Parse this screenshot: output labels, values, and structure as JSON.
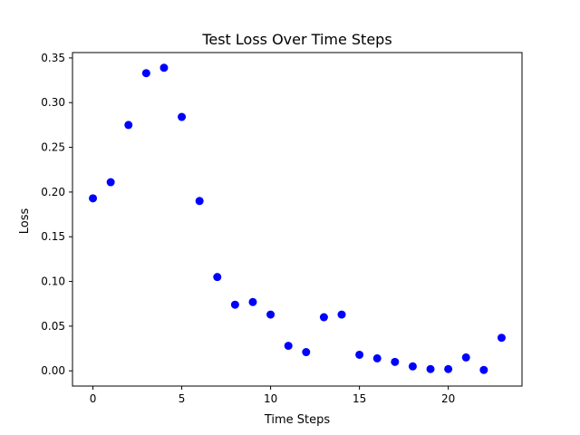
{
  "chart_data": {
    "type": "scatter",
    "title": "Test Loss Over Time Steps",
    "xlabel": "Time Steps",
    "ylabel": "Loss",
    "xlim": [
      -1.15,
      24.15
    ],
    "ylim": [
      -0.017,
      0.356
    ],
    "xticks": [
      0,
      5,
      10,
      15,
      20
    ],
    "xtick_labels": [
      "0",
      "5",
      "10",
      "15",
      "20"
    ],
    "yticks": [
      0.0,
      0.05,
      0.1,
      0.15,
      0.2,
      0.25,
      0.3,
      0.35
    ],
    "ytick_labels": [
      "0.00",
      "0.05",
      "0.10",
      "0.15",
      "0.20",
      "0.25",
      "0.30",
      "0.35"
    ],
    "grid": false,
    "legend": "none",
    "marker_color": "#0000ff",
    "series": [
      {
        "x": [
          0,
          1,
          2,
          3,
          4,
          5,
          6,
          7,
          8,
          9,
          10,
          11,
          12,
          13,
          14,
          15,
          16,
          17,
          18,
          19,
          20,
          21,
          22,
          23
        ],
        "y": [
          0.193,
          0.211,
          0.275,
          0.333,
          0.339,
          0.284,
          0.19,
          0.105,
          0.074,
          0.077,
          0.063,
          0.028,
          0.021,
          0.06,
          0.063,
          0.018,
          0.014,
          0.01,
          0.005,
          0.002,
          0.002,
          0.015,
          0.001,
          0.037
        ]
      }
    ]
  }
}
